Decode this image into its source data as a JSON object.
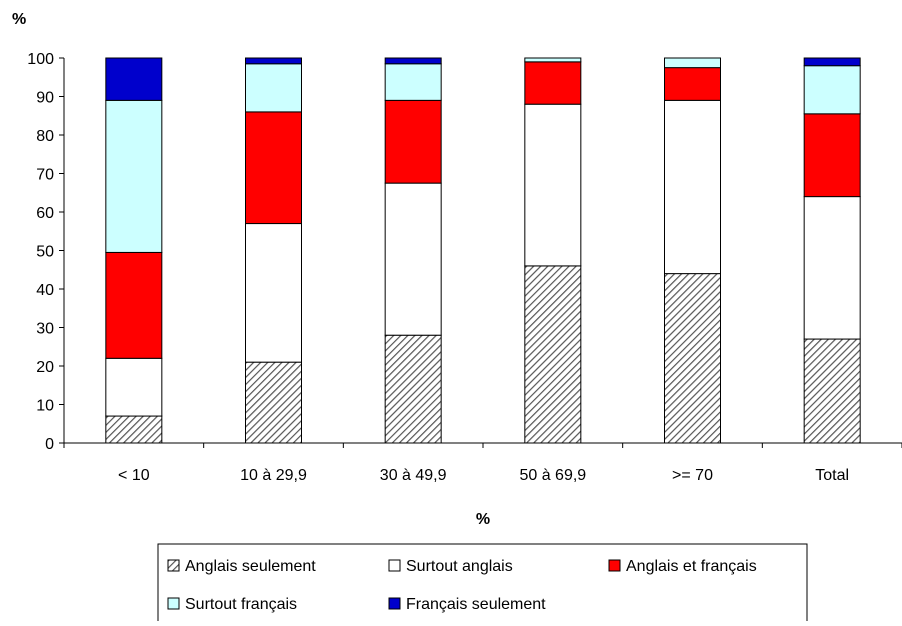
{
  "chart_data": {
    "type": "bar",
    "stacked": true,
    "ylabel": "%",
    "xlabel": "%",
    "ylim": [
      0,
      100
    ],
    "yticks": [
      0,
      10,
      20,
      30,
      40,
      50,
      60,
      70,
      80,
      90,
      100
    ],
    "grid": false,
    "legend_position": "bottom",
    "categories": [
      "< 10",
      "10 à 29,9",
      "30 à 49,9",
      "50 à 69,9",
      ">= 70",
      "Total"
    ],
    "series": [
      {
        "name": "Anglais seulement",
        "color": "#ffffff",
        "pattern": "diagonal-hatch",
        "values": [
          7,
          21,
          28,
          46,
          44,
          27
        ]
      },
      {
        "name": "Surtout anglais",
        "color": "#ffffff",
        "values": [
          15,
          36,
          39.5,
          42,
          45,
          37
        ]
      },
      {
        "name": "Anglais et français",
        "color": "#ff0000",
        "values": [
          27.5,
          29,
          21.5,
          11,
          8.5,
          21.5
        ]
      },
      {
        "name": "Surtout français",
        "color": "#ccffff",
        "values": [
          39.5,
          12.5,
          9.5,
          1,
          2.5,
          12.5
        ]
      },
      {
        "name": "Français seulement",
        "color": "#0000cc",
        "values": [
          11,
          1.5,
          1.5,
          0,
          0,
          2
        ]
      }
    ]
  }
}
